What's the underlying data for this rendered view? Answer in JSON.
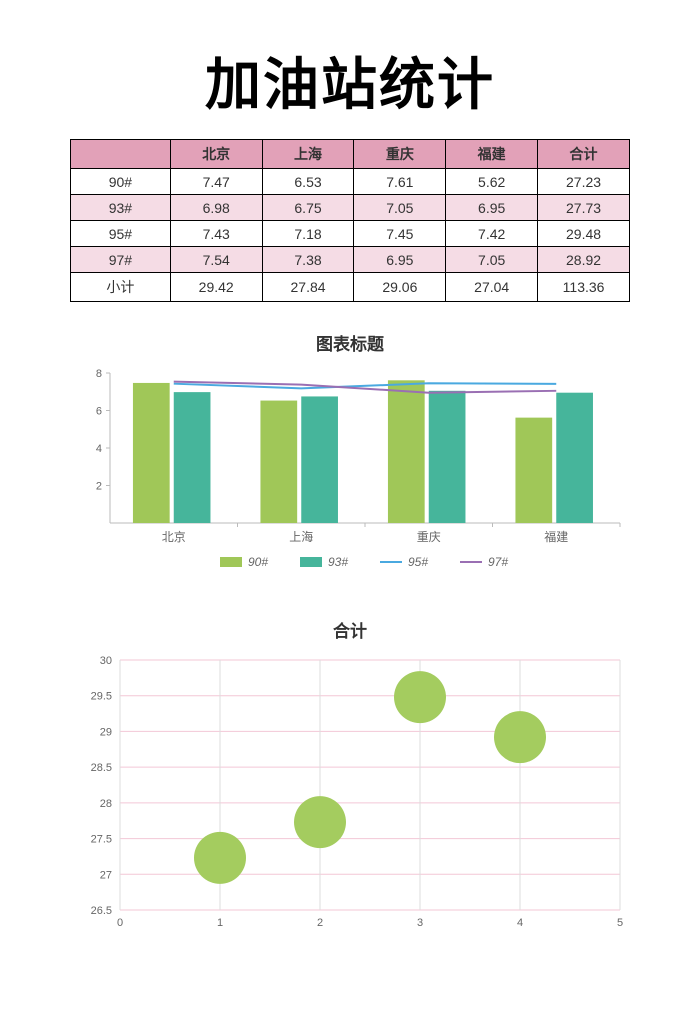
{
  "title": "加油站统计",
  "table": {
    "header_bg": "#e2a1b8",
    "alt_row_bg": "#f5dce5",
    "border_color": "#000000",
    "columns": [
      "",
      "北京",
      "上海",
      "重庆",
      "福建",
      "合计"
    ],
    "rows": [
      {
        "label": "90#",
        "cells": [
          "7.47",
          "6.53",
          "7.61",
          "5.62",
          "27.23"
        ],
        "shade": "white"
      },
      {
        "label": "93#",
        "cells": [
          "6.98",
          "6.75",
          "7.05",
          "6.95",
          "27.73"
        ],
        "shade": "pink"
      },
      {
        "label": "95#",
        "cells": [
          "7.43",
          "7.18",
          "7.45",
          "7.42",
          "29.48"
        ],
        "shade": "white"
      },
      {
        "label": "97#",
        "cells": [
          "7.54",
          "7.38",
          "6.95",
          "7.05",
          "28.92"
        ],
        "shade": "pink"
      },
      {
        "label": "小计",
        "cells": [
          "29.42",
          "27.84",
          "29.06",
          "27.04",
          "113.36"
        ],
        "shade": "white"
      }
    ]
  },
  "bar_chart": {
    "title": "图表标题",
    "categories": [
      "北京",
      "上海",
      "重庆",
      "福建"
    ],
    "series_bars": [
      {
        "name": "90#",
        "color": "#a0c758",
        "values": [
          7.47,
          6.53,
          7.61,
          5.62
        ]
      },
      {
        "name": "93#",
        "color": "#46b59b",
        "values": [
          6.98,
          6.75,
          7.05,
          6.95
        ]
      }
    ],
    "series_lines": [
      {
        "name": "95#",
        "color": "#4aa9e0",
        "values": [
          7.43,
          7.18,
          7.45,
          7.42
        ]
      },
      {
        "name": "97#",
        "color": "#9a6fb3",
        "values": [
          7.54,
          7.38,
          6.95,
          7.05
        ]
      }
    ],
    "y_ticks": [
      2,
      4,
      6,
      8
    ],
    "ylim": [
      0,
      8
    ],
    "plot_bg": "#ffffff",
    "axis_color": "#bbbbbb",
    "label_fontsize": 12,
    "bar_width": 0.32
  },
  "bubble_chart": {
    "title": "合计",
    "xlim": [
      0,
      5
    ],
    "ylim": [
      26.5,
      30
    ],
    "x_ticks": [
      0,
      1,
      2,
      3,
      4,
      5
    ],
    "y_ticks": [
      26.5,
      27,
      27.5,
      28,
      28.5,
      29,
      29.5,
      30
    ],
    "grid_color": "#f3c7d6",
    "grid_color_v": "#dddddd",
    "bubble_color": "#a4cc5f",
    "bubble_radius": 26,
    "points": [
      {
        "x": 1,
        "y": 27.23
      },
      {
        "x": 2,
        "y": 27.73
      },
      {
        "x": 3,
        "y": 29.48
      },
      {
        "x": 4,
        "y": 28.92
      }
    ]
  }
}
